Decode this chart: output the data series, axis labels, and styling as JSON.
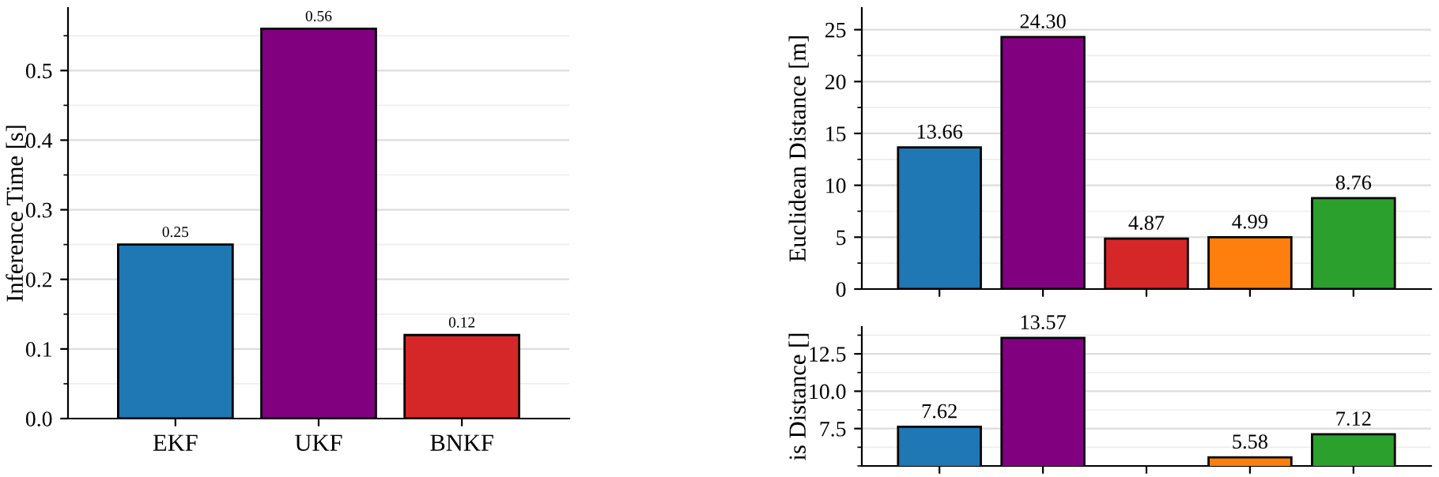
{
  "chart_data": [
    {
      "type": "bar",
      "categories": [
        "EKF",
        "UKF",
        "BNKF"
      ],
      "values": [
        0.25,
        0.56,
        0.12
      ],
      "colors": [
        "#1f77b4",
        "#800080",
        "#d62728"
      ],
      "ylabel": "Inference Time [s]",
      "ylim": [
        0,
        0.59
      ],
      "yticks": [
        {
          "value": 0,
          "label": "0.0"
        },
        0.1,
        0.2,
        0.3,
        0.4,
        0.5
      ],
      "grid": "y",
      "data_labels": true
    },
    {
      "type": "bar",
      "categories": [
        null,
        null,
        null,
        null,
        null
      ],
      "values": [
        13.66,
        24.3,
        4.87,
        4.99,
        8.76
      ],
      "value_labels": [
        "13.66",
        "24.30",
        "4.87",
        "4.99",
        "8.76"
      ],
      "colors": [
        "#1f77b4",
        "#800080",
        "#d62728",
        "#ff7f0e",
        "#2ca02c"
      ],
      "ylabel": "Euclidean Distance [m]",
      "ylim": [
        0,
        27.1
      ],
      "yticks": [
        0,
        5,
        10,
        15,
        20,
        25
      ],
      "grid": "y",
      "tick_labels": "y"
    },
    {
      "type": "bar",
      "categories": [
        null,
        null,
        null,
        null,
        null
      ],
      "values": [
        7.62,
        13.57,
        null,
        5.58,
        7.12
      ],
      "value_labels": [
        "7.62",
        "13.57",
        null,
        "5.58",
        "7.12"
      ],
      "colors": [
        "#1f77b4",
        "#800080",
        "#d62728",
        "#ff7f0e",
        "#2ca02c"
      ],
      "ylabel": "is Distance []",
      "ylim": [
        5.0,
        14.3
      ],
      "yticks": [
        7.5,
        {
          "value": 10,
          "label": "10.0"
        },
        12.5
      ],
      "grid": "y",
      "tick_labels": "y"
    }
  ]
}
